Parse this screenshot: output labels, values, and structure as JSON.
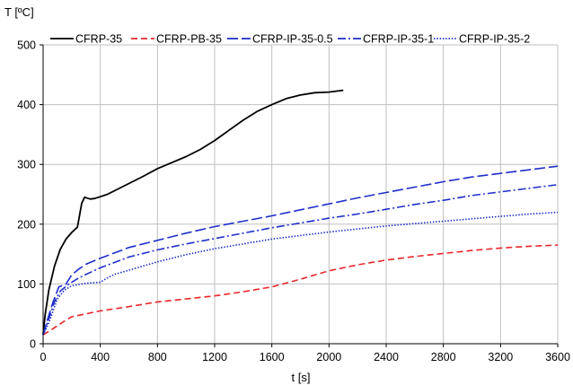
{
  "chart_data": {
    "type": "line",
    "title": "",
    "xlabel": "t [s]",
    "ylabel": "T [ºC]",
    "xlim": [
      0,
      3600
    ],
    "ylim": [
      0,
      500
    ],
    "x_ticks": [
      0,
      400,
      800,
      1200,
      1600,
      2000,
      2400,
      2800,
      3200,
      3600
    ],
    "y_ticks": [
      0,
      100,
      200,
      300,
      400,
      500
    ],
    "grid": true,
    "legend_position": "top",
    "series": [
      {
        "name": "CFRP-35",
        "color": "#000000",
        "dash": "solid",
        "points": [
          [
            0,
            15
          ],
          [
            15,
            50
          ],
          [
            40,
            90
          ],
          [
            80,
            130
          ],
          [
            120,
            158
          ],
          [
            160,
            175
          ],
          [
            200,
            186
          ],
          [
            240,
            195
          ],
          [
            255,
            215
          ],
          [
            270,
            235
          ],
          [
            290,
            245
          ],
          [
            330,
            242
          ],
          [
            360,
            243
          ],
          [
            400,
            246
          ],
          [
            450,
            250
          ],
          [
            500,
            256
          ],
          [
            600,
            268
          ],
          [
            700,
            280
          ],
          [
            800,
            293
          ],
          [
            900,
            303
          ],
          [
            1000,
            313
          ],
          [
            1100,
            325
          ],
          [
            1200,
            340
          ],
          [
            1300,
            357
          ],
          [
            1400,
            374
          ],
          [
            1500,
            389
          ],
          [
            1600,
            400
          ],
          [
            1700,
            410
          ],
          [
            1800,
            416
          ],
          [
            1900,
            420
          ],
          [
            2000,
            421
          ],
          [
            2100,
            424
          ]
        ]
      },
      {
        "name": "CFRP-PB-35",
        "color": "#e8272b",
        "dash": "dashed",
        "points": [
          [
            0,
            15
          ],
          [
            50,
            22
          ],
          [
            100,
            30
          ],
          [
            150,
            38
          ],
          [
            200,
            45
          ],
          [
            300,
            50
          ],
          [
            400,
            55
          ],
          [
            600,
            62
          ],
          [
            800,
            70
          ],
          [
            1000,
            75
          ],
          [
            1200,
            80
          ],
          [
            1400,
            87
          ],
          [
            1600,
            95
          ],
          [
            1800,
            108
          ],
          [
            2000,
            122
          ],
          [
            2200,
            132
          ],
          [
            2400,
            140
          ],
          [
            2600,
            146
          ],
          [
            2800,
            151
          ],
          [
            3000,
            156
          ],
          [
            3200,
            160
          ],
          [
            3400,
            163
          ],
          [
            3600,
            165
          ]
        ]
      },
      {
        "name": "CFRP-IP-35-0.5",
        "color": "#1f2ec9",
        "dash": "longdash",
        "points": [
          [
            0,
            15
          ],
          [
            30,
            40
          ],
          [
            70,
            70
          ],
          [
            110,
            95
          ],
          [
            160,
            100
          ],
          [
            200,
            115
          ],
          [
            250,
            125
          ],
          [
            300,
            133
          ],
          [
            400,
            143
          ],
          [
            500,
            152
          ],
          [
            600,
            161
          ],
          [
            800,
            173
          ],
          [
            1000,
            185
          ],
          [
            1200,
            196
          ],
          [
            1400,
            205
          ],
          [
            1600,
            214
          ],
          [
            1800,
            224
          ],
          [
            2000,
            234
          ],
          [
            2200,
            244
          ],
          [
            2400,
            253
          ],
          [
            2600,
            262
          ],
          [
            2800,
            271
          ],
          [
            3000,
            279
          ],
          [
            3200,
            285
          ],
          [
            3400,
            291
          ],
          [
            3600,
            297
          ]
        ]
      },
      {
        "name": "CFRP-IP-35-1",
        "color": "#1f2ec9",
        "dash": "dashdot",
        "points": [
          [
            0,
            15
          ],
          [
            30,
            35
          ],
          [
            80,
            70
          ],
          [
            120,
            88
          ],
          [
            180,
            100
          ],
          [
            250,
            110
          ],
          [
            300,
            116
          ],
          [
            400,
            127
          ],
          [
            500,
            136
          ],
          [
            600,
            145
          ],
          [
            800,
            157
          ],
          [
            1000,
            167
          ],
          [
            1200,
            176
          ],
          [
            1400,
            185
          ],
          [
            1600,
            194
          ],
          [
            1800,
            202
          ],
          [
            2000,
            210
          ],
          [
            2200,
            217
          ],
          [
            2400,
            225
          ],
          [
            2600,
            233
          ],
          [
            2800,
            240
          ],
          [
            3000,
            248
          ],
          [
            3200,
            254
          ],
          [
            3400,
            260
          ],
          [
            3600,
            266
          ]
        ]
      },
      {
        "name": "CFRP-IP-35-2",
        "color": "#1f2ec9",
        "dash": "dotted",
        "points": [
          [
            0,
            15
          ],
          [
            40,
            35
          ],
          [
            100,
            75
          ],
          [
            150,
            90
          ],
          [
            200,
            97
          ],
          [
            300,
            101
          ],
          [
            400,
            103
          ],
          [
            450,
            110
          ],
          [
            500,
            116
          ],
          [
            600,
            123
          ],
          [
            800,
            137
          ],
          [
            1000,
            149
          ],
          [
            1200,
            159
          ],
          [
            1400,
            167
          ],
          [
            1600,
            175
          ],
          [
            1800,
            181
          ],
          [
            2000,
            187
          ],
          [
            2200,
            192
          ],
          [
            2400,
            197
          ],
          [
            2600,
            201
          ],
          [
            2800,
            205
          ],
          [
            3000,
            209
          ],
          [
            3200,
            213
          ],
          [
            3400,
            217
          ],
          [
            3600,
            220
          ]
        ]
      }
    ]
  }
}
